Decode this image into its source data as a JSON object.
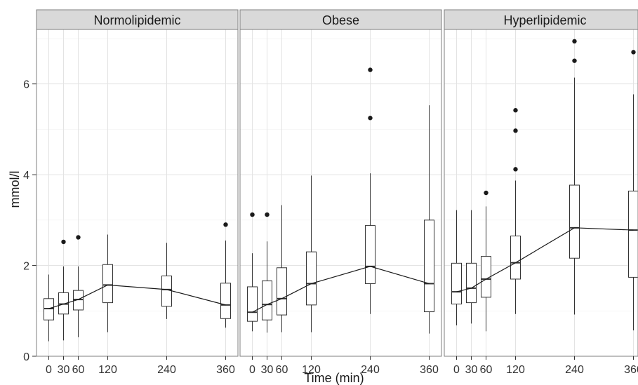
{
  "chart_data": {
    "type": "box",
    "xlabel": "Time (min)",
    "ylabel": "mmol/l",
    "ylim": [
      0,
      7.2
    ],
    "yticks": [
      0,
      2,
      4,
      6
    ],
    "xlim": [
      -25,
      385
    ],
    "xticks": [
      0,
      30,
      60,
      120,
      240,
      360
    ],
    "xtick_labels": [
      "0",
      "30",
      "60",
      "120",
      "240",
      "360"
    ],
    "grid": true,
    "panels": [
      {
        "name": "Normolipidemic",
        "boxes": [
          {
            "x": 0,
            "whisker_low": 0.33,
            "q1": 0.8,
            "median": 1.05,
            "q3": 1.27,
            "whisker_high": 1.8,
            "outliers": []
          },
          {
            "x": 30,
            "whisker_low": 0.35,
            "q1": 0.93,
            "median": 1.15,
            "q3": 1.4,
            "whisker_high": 1.98,
            "outliers": [
              2.52
            ]
          },
          {
            "x": 60,
            "whisker_low": 0.42,
            "q1": 1.02,
            "median": 1.25,
            "q3": 1.45,
            "whisker_high": 1.98,
            "outliers": [
              2.62
            ]
          },
          {
            "x": 120,
            "whisker_low": 0.53,
            "q1": 1.18,
            "median": 1.57,
            "q3": 2.02,
            "whisker_high": 2.68,
            "outliers": []
          },
          {
            "x": 240,
            "whisker_low": 0.82,
            "q1": 1.1,
            "median": 1.47,
            "q3": 1.77,
            "whisker_high": 2.5,
            "outliers": []
          },
          {
            "x": 360,
            "whisker_low": 0.63,
            "q1": 0.83,
            "median": 1.13,
            "q3": 1.61,
            "whisker_high": 2.55,
            "outliers": [
              2.9
            ]
          }
        ]
      },
      {
        "name": "Obese",
        "boxes": [
          {
            "x": 0,
            "whisker_low": 0.55,
            "q1": 0.77,
            "median": 0.97,
            "q3": 1.53,
            "whisker_high": 2.27,
            "outliers": [
              3.12
            ]
          },
          {
            "x": 30,
            "whisker_low": 0.52,
            "q1": 0.8,
            "median": 1.14,
            "q3": 1.66,
            "whisker_high": 2.53,
            "outliers": [
              3.12
            ]
          },
          {
            "x": 60,
            "whisker_low": 0.53,
            "q1": 0.91,
            "median": 1.27,
            "q3": 1.95,
            "whisker_high": 3.33,
            "outliers": []
          },
          {
            "x": 120,
            "whisker_low": 0.53,
            "q1": 1.13,
            "median": 1.6,
            "q3": 2.3,
            "whisker_high": 3.98,
            "outliers": []
          },
          {
            "x": 240,
            "whisker_low": 0.93,
            "q1": 1.6,
            "median": 1.98,
            "q3": 2.88,
            "whisker_high": 4.03,
            "outliers": [
              5.25,
              6.31
            ]
          },
          {
            "x": 360,
            "whisker_low": 0.5,
            "q1": 0.98,
            "median": 1.6,
            "q3": 3.0,
            "whisker_high": 5.53,
            "outliers": []
          }
        ]
      },
      {
        "name": "Hyperlipidemic",
        "boxes": [
          {
            "x": 0,
            "whisker_low": 0.68,
            "q1": 1.15,
            "median": 1.42,
            "q3": 2.05,
            "whisker_high": 3.22,
            "outliers": []
          },
          {
            "x": 30,
            "whisker_low": 0.72,
            "q1": 1.18,
            "median": 1.5,
            "q3": 2.05,
            "whisker_high": 3.22,
            "outliers": []
          },
          {
            "x": 60,
            "whisker_low": 0.55,
            "q1": 1.3,
            "median": 1.7,
            "q3": 2.2,
            "whisker_high": 3.3,
            "outliers": [
              3.6
            ]
          },
          {
            "x": 120,
            "whisker_low": 0.93,
            "q1": 1.7,
            "median": 2.06,
            "q3": 2.65,
            "whisker_high": 3.87,
            "outliers": [
              4.12,
              4.97,
              5.42
            ]
          },
          {
            "x": 240,
            "whisker_low": 0.92,
            "q1": 2.16,
            "median": 2.83,
            "q3": 3.77,
            "whisker_high": 6.14,
            "outliers": [
              6.51,
              6.94
            ]
          },
          {
            "x": 360,
            "whisker_low": 0.57,
            "q1": 1.74,
            "median": 2.78,
            "q3": 3.64,
            "whisker_high": 5.77,
            "outliers": [
              6.7
            ]
          }
        ]
      }
    ]
  }
}
